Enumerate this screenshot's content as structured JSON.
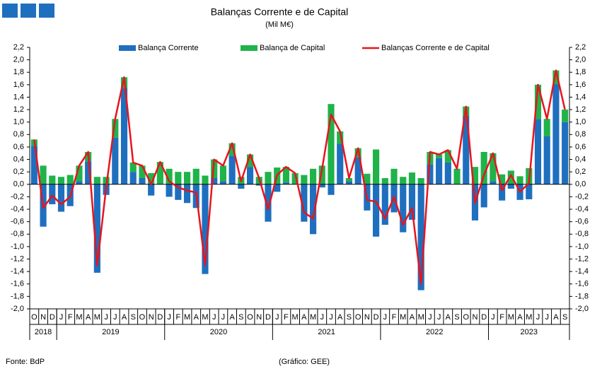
{
  "chart_data": {
    "type": "stacked_bar_line",
    "title": "Balanças Corrente e de Capital",
    "subtitle": "(Mil M€)",
    "source": "Fonte: BdP",
    "credit": "(Gráfico: GEE)",
    "groups": [
      {
        "label": "2018",
        "categories": [
          "O",
          "N",
          "D"
        ]
      },
      {
        "label": "2019",
        "categories": [
          "J",
          "F",
          "M",
          "A",
          "M",
          "J",
          "J",
          "A",
          "S",
          "O",
          "N",
          "D"
        ]
      },
      {
        "label": "2020",
        "categories": [
          "J",
          "F",
          "M",
          "A",
          "M",
          "J",
          "J",
          "A",
          "S",
          "O",
          "N",
          "D"
        ]
      },
      {
        "label": "2021",
        "categories": [
          "J",
          "F",
          "M",
          "A",
          "M",
          "J",
          "J",
          "A",
          "S",
          "O",
          "N",
          "D"
        ]
      },
      {
        "label": "2022",
        "categories": [
          "J",
          "F",
          "M",
          "A",
          "M",
          "J",
          "J",
          "A",
          "S",
          "O",
          "N",
          "D"
        ]
      },
      {
        "label": "2023",
        "categories": [
          "J",
          "F",
          "M",
          "A",
          "M",
          "J",
          "J",
          "A",
          "S"
        ]
      }
    ],
    "series": [
      {
        "name": "Balança Corrente",
        "color": "#1f6fbf",
        "kind": "bar",
        "values": [
          0.62,
          -0.68,
          -0.32,
          -0.44,
          -0.35,
          0.05,
          0.37,
          -1.42,
          -0.17,
          0.75,
          1.55,
          0.2,
          0.1,
          -0.18,
          0.01,
          -0.2,
          -0.25,
          -0.3,
          -0.38,
          -1.44,
          0.1,
          0.05,
          0.46,
          -0.07,
          0.28,
          -0.02,
          -0.6,
          -0.12,
          0.03,
          0.0,
          -0.6,
          -0.8,
          -0.05,
          -0.17,
          0.65,
          0.05,
          0.43,
          -0.42,
          -0.84,
          -0.65,
          -0.45,
          -0.77,
          -0.57,
          -1.7,
          0.32,
          0.42,
          0.35,
          0.0,
          1.1,
          -0.58,
          -0.37,
          0.05,
          -0.26,
          -0.07,
          -0.25,
          -0.24,
          1.05,
          0.77,
          1.61,
          1.0
        ]
      },
      {
        "name": "Balança de Capital",
        "color": "#1fb34a",
        "kind": "bar",
        "values": [
          0.1,
          0.3,
          0.14,
          0.12,
          0.15,
          0.25,
          0.15,
          0.12,
          0.12,
          0.3,
          0.17,
          0.15,
          0.2,
          0.18,
          0.35,
          0.25,
          0.2,
          0.2,
          0.25,
          0.14,
          0.3,
          0.25,
          0.2,
          0.12,
          0.2,
          0.12,
          0.2,
          0.27,
          0.25,
          0.18,
          0.15,
          0.25,
          0.3,
          1.29,
          0.2,
          0.05,
          0.15,
          0.17,
          0.56,
          0.1,
          0.25,
          0.12,
          0.19,
          0.1,
          0.2,
          0.06,
          0.2,
          0.25,
          0.15,
          0.28,
          0.52,
          0.45,
          0.16,
          0.22,
          0.13,
          0.26,
          0.55,
          0.28,
          0.22,
          0.2
        ]
      },
      {
        "name": "Balanças Corrente e de Capital",
        "color": "#e8141c",
        "kind": "line",
        "values": [
          0.72,
          -0.38,
          -0.18,
          -0.32,
          -0.2,
          0.3,
          0.52,
          -1.3,
          -0.05,
          1.05,
          1.72,
          0.35,
          0.3,
          0.0,
          0.36,
          0.05,
          -0.05,
          -0.1,
          -0.13,
          -1.3,
          0.4,
          0.3,
          0.66,
          0.05,
          0.48,
          0.1,
          -0.4,
          0.15,
          0.28,
          0.18,
          -0.45,
          -0.55,
          0.25,
          1.12,
          0.85,
          0.1,
          0.58,
          -0.25,
          -0.28,
          -0.55,
          -0.2,
          -0.65,
          -0.38,
          -1.6,
          0.52,
          0.48,
          0.55,
          0.25,
          1.25,
          -0.3,
          0.15,
          0.5,
          -0.1,
          0.15,
          -0.12,
          0.02,
          1.6,
          1.05,
          1.83,
          1.2
        ]
      }
    ],
    "ylim": [
      -2.0,
      2.2
    ],
    "yticks": [
      {
        "value": -2.0,
        "label": "-2,0"
      },
      {
        "value": -1.8,
        "label": "-1,8"
      },
      {
        "value": -1.6,
        "label": "-1,6"
      },
      {
        "value": -1.4,
        "label": "-1,4"
      },
      {
        "value": -1.2,
        "label": "-1,2"
      },
      {
        "value": -1.0,
        "label": "-1,0"
      },
      {
        "value": -0.8,
        "label": "-0,8"
      },
      {
        "value": -0.6,
        "label": "-0,6"
      },
      {
        "value": -0.4,
        "label": "-0,4"
      },
      {
        "value": -0.2,
        "label": "-0,2"
      },
      {
        "value": 0,
        "label": "0,0"
      },
      {
        "value": 0.2,
        "label": "0,2"
      },
      {
        "value": 0.4,
        "label": "0,4"
      },
      {
        "value": 0.6,
        "label": "0,6"
      },
      {
        "value": 0.8,
        "label": "0,8"
      },
      {
        "value": 1.0,
        "label": "1,0"
      },
      {
        "value": 1.2,
        "label": "1,2"
      },
      {
        "value": 1.4,
        "label": "1,4"
      },
      {
        "value": 1.6,
        "label": "1,6"
      },
      {
        "value": 1.8,
        "label": "1,8"
      },
      {
        "value": 2.0,
        "label": "2,0"
      },
      {
        "value": 2.2,
        "label": "2,2"
      }
    ]
  }
}
